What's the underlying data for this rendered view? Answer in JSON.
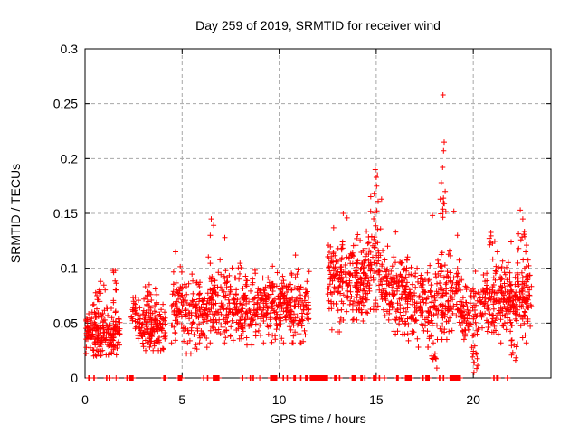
{
  "chart_data": {
    "type": "scatter",
    "title": "Day 259 of 2019, SRMTID for receiver wind",
    "xlabel": "GPS time / hours",
    "ylabel": "SRMTID / TECUs",
    "xlim": [
      0,
      24
    ],
    "ylim": [
      0,
      0.3
    ],
    "xticks": [
      0,
      5,
      10,
      15,
      20
    ],
    "xtick_labels": [
      "0",
      "5",
      "10",
      "15",
      "20"
    ],
    "yticks": [
      0,
      0.05,
      0.1,
      0.15,
      0.2,
      0.25,
      0.3
    ],
    "ytick_labels": [
      "0",
      "0.05",
      "0.1",
      "0.15",
      "0.2",
      "0.25",
      "0.3"
    ],
    "grid": true,
    "legend": "none",
    "marker": {
      "shape": "plus",
      "color": "#ff0000",
      "size": 7
    },
    "clusters": [
      {
        "x0": 0.05,
        "x1": 0.95,
        "n": 115,
        "mean": 0.042,
        "sd": 0.012,
        "min": 0.02,
        "max": 0.075
      },
      {
        "x0": 0.45,
        "x1": 1.15,
        "n": 12,
        "mean": 0.075,
        "sd": 0.008,
        "min": 0.062,
        "max": 0.088
      },
      {
        "x0": 0.95,
        "x1": 1.8,
        "n": 85,
        "mean": 0.04,
        "sd": 0.011,
        "min": 0.021,
        "max": 0.068
      },
      {
        "x0": 1.4,
        "x1": 1.65,
        "n": 8,
        "mean": 0.085,
        "sd": 0.009,
        "min": 0.068,
        "max": 0.098
      },
      {
        "x0": 2.35,
        "x1": 2.6,
        "n": 18,
        "mean": 0.06,
        "sd": 0.009,
        "min": 0.045,
        "max": 0.078
      },
      {
        "x0": 2.6,
        "x1": 4.15,
        "n": 150,
        "mean": 0.047,
        "sd": 0.011,
        "min": 0.025,
        "max": 0.078
      },
      {
        "x0": 3.0,
        "x1": 3.7,
        "n": 10,
        "mean": 0.077,
        "sd": 0.009,
        "min": 0.062,
        "max": 0.093
      },
      {
        "x0": 4.45,
        "x1": 5.05,
        "n": 60,
        "mean": 0.065,
        "sd": 0.017,
        "min": 0.032,
        "max": 0.108
      },
      {
        "x0": 5.05,
        "x1": 6.3,
        "n": 115,
        "mean": 0.057,
        "sd": 0.015,
        "min": 0.022,
        "max": 0.098
      },
      {
        "x0": 6.3,
        "x1": 7.35,
        "n": 100,
        "mean": 0.068,
        "sd": 0.019,
        "min": 0.032,
        "max": 0.138
      },
      {
        "x0": 7.35,
        "x1": 9.0,
        "n": 160,
        "mean": 0.064,
        "sd": 0.015,
        "min": 0.03,
        "max": 0.108
      },
      {
        "x0": 9.0,
        "x1": 11.55,
        "n": 265,
        "mean": 0.067,
        "sd": 0.016,
        "min": 0.032,
        "max": 0.112
      },
      {
        "x0": 12.5,
        "x1": 14.6,
        "n": 235,
        "mean": 0.088,
        "sd": 0.02,
        "min": 0.042,
        "max": 0.145
      },
      {
        "x0": 14.6,
        "x1": 15.3,
        "n": 70,
        "mean": 0.105,
        "sd": 0.026,
        "min": 0.052,
        "max": 0.185
      },
      {
        "x0": 15.3,
        "x1": 16.6,
        "n": 140,
        "mean": 0.082,
        "sd": 0.019,
        "min": 0.04,
        "max": 0.132
      },
      {
        "x0": 16.6,
        "x1": 18.0,
        "n": 130,
        "mean": 0.067,
        "sd": 0.017,
        "min": 0.028,
        "max": 0.118
      },
      {
        "x0": 17.85,
        "x1": 18.15,
        "n": 10,
        "mean": 0.02,
        "sd": 0.006,
        "min": 0.009,
        "max": 0.032
      },
      {
        "x0": 18.0,
        "x1": 19.3,
        "n": 130,
        "mean": 0.075,
        "sd": 0.019,
        "min": 0.035,
        "max": 0.13
      },
      {
        "x0": 18.25,
        "x1": 18.65,
        "n": 9,
        "mean": 0.152,
        "sd": 0.009,
        "min": 0.14,
        "max": 0.17
      },
      {
        "x0": 19.3,
        "x1": 20.35,
        "n": 90,
        "mean": 0.06,
        "sd": 0.015,
        "min": 0.026,
        "max": 0.098
      },
      {
        "x0": 19.95,
        "x1": 20.25,
        "n": 14,
        "mean": 0.02,
        "sd": 0.009,
        "min": 0.005,
        "max": 0.04
      },
      {
        "x0": 20.35,
        "x1": 23.0,
        "n": 285,
        "mean": 0.07,
        "sd": 0.016,
        "min": 0.032,
        "max": 0.115
      },
      {
        "x0": 20.8,
        "x1": 21.3,
        "n": 8,
        "mean": 0.125,
        "sd": 0.006,
        "min": 0.115,
        "max": 0.136
      },
      {
        "x0": 21.95,
        "x1": 22.3,
        "n": 10,
        "mean": 0.026,
        "sd": 0.008,
        "min": 0.013,
        "max": 0.042
      },
      {
        "x0": 22.3,
        "x1": 22.85,
        "n": 10,
        "mean": 0.122,
        "sd": 0.01,
        "min": 0.105,
        "max": 0.14
      }
    ],
    "outliers": [
      [
        1.55,
        0.098
      ],
      [
        4.66,
        0.115
      ],
      [
        6.5,
        0.145
      ],
      [
        6.62,
        0.139
      ],
      [
        6.45,
        0.13
      ],
      [
        7.2,
        0.128
      ],
      [
        13.3,
        0.15
      ],
      [
        13.5,
        0.146
      ],
      [
        14.95,
        0.19
      ],
      [
        15.0,
        0.183
      ],
      [
        15.02,
        0.175
      ],
      [
        14.9,
        0.168
      ],
      [
        15.1,
        0.161
      ],
      [
        16.0,
        0.133
      ],
      [
        17.9,
        0.148
      ],
      [
        18.44,
        0.258
      ],
      [
        18.5,
        0.215
      ],
      [
        18.47,
        0.207
      ],
      [
        18.42,
        0.192
      ],
      [
        18.35,
        0.178
      ],
      [
        18.55,
        0.17
      ],
      [
        18.3,
        0.163
      ],
      [
        19.0,
        0.152
      ],
      [
        22.42,
        0.153
      ],
      [
        22.55,
        0.145
      ],
      [
        22.6,
        0.131
      ],
      [
        21.95,
        0.124
      ]
    ],
    "zero_marks": [
      [
        0.18,
        0.22
      ],
      [
        0.45,
        0.5
      ],
      [
        1.1,
        1.15
      ],
      [
        1.25,
        1.3
      ],
      [
        1.6,
        1.62
      ],
      [
        2.15,
        2.2
      ],
      [
        2.3,
        2.5
      ],
      [
        4.05,
        4.15
      ],
      [
        4.8,
        5.0
      ],
      [
        6.1,
        6.15
      ],
      [
        6.3,
        6.35
      ],
      [
        6.6,
        6.9
      ],
      [
        8.1,
        8.15
      ],
      [
        8.5,
        8.55
      ],
      [
        8.65,
        8.7
      ],
      [
        9.0,
        9.02
      ],
      [
        9.55,
        9.9
      ],
      [
        10.2,
        10.25
      ],
      [
        10.4,
        10.45
      ],
      [
        10.75,
        10.85
      ],
      [
        11.1,
        11.15
      ],
      [
        11.35,
        11.45
      ],
      [
        11.6,
        12.5
      ],
      [
        12.85,
        12.95
      ],
      [
        13.1,
        13.15
      ],
      [
        13.75,
        13.95
      ],
      [
        14.2,
        14.3
      ],
      [
        14.4,
        14.45
      ],
      [
        14.85,
        15.0
      ],
      [
        15.15,
        15.2
      ],
      [
        15.4,
        15.45
      ],
      [
        16.05,
        16.15
      ],
      [
        16.5,
        16.8
      ],
      [
        17.4,
        17.45
      ],
      [
        17.55,
        17.75
      ],
      [
        18.25,
        18.3
      ],
      [
        18.45,
        18.5
      ],
      [
        18.8,
        19.35
      ],
      [
        21.05,
        21.1
      ],
      [
        21.2,
        21.3
      ],
      [
        21.75,
        21.8
      ]
    ]
  },
  "colors": {
    "marker": "#ff0000",
    "axis": "#000000",
    "grid": "#a8a8a8",
    "background": "#ffffff"
  }
}
